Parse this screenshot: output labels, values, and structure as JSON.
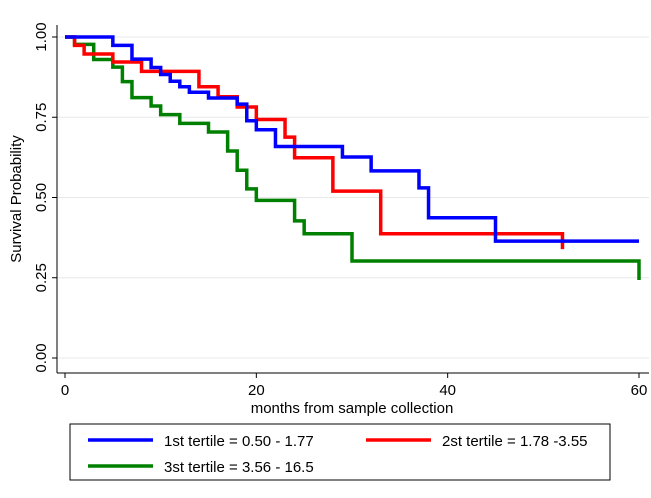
{
  "chart_data": {
    "type": "line",
    "step": true,
    "xlabel": "months from sample collection",
    "ylabel": "Survival Probability",
    "xlim": [
      0,
      60
    ],
    "ylim": [
      0,
      1
    ],
    "xticks": [
      0,
      20,
      40,
      60
    ],
    "yticks": [
      0,
      0.25,
      0.5,
      0.75,
      1
    ],
    "xtick_labels": [
      "0",
      "20",
      "40",
      "60"
    ],
    "ytick_labels": [
      "0.00",
      "0.25",
      "0.50",
      "0.75",
      "1.00"
    ],
    "grid": "horizontal",
    "legend_position": "bottom",
    "series": [
      {
        "name": "1st tertile = 0.50 - 1.77",
        "color": "#0000ff",
        "x": [
          0,
          5,
          7,
          9,
          10,
          11,
          12,
          13,
          15,
          18,
          19,
          20,
          22,
          29,
          32,
          37,
          38,
          45,
          60
        ],
        "y": [
          1.0,
          0.974,
          0.931,
          0.905,
          0.883,
          0.862,
          0.845,
          0.828,
          0.81,
          0.791,
          0.739,
          0.711,
          0.659,
          0.626,
          0.583,
          0.53,
          0.437,
          0.364,
          0.364
        ]
      },
      {
        "name": "2st tertile = 1.78 -3.55",
        "color": "#ff0000",
        "x": [
          0,
          1,
          2,
          5,
          8,
          14,
          16,
          18,
          20,
          23,
          24,
          28,
          33,
          52
        ],
        "y": [
          1.0,
          0.974,
          0.947,
          0.922,
          0.893,
          0.845,
          0.814,
          0.782,
          0.743,
          0.688,
          0.624,
          0.52,
          0.387,
          0.339
        ]
      },
      {
        "name": "3st tertile = 3.56 - 16.5",
        "color": "#008000",
        "x": [
          0,
          1,
          3,
          5,
          6,
          7,
          9,
          10,
          12,
          15,
          17,
          18,
          19,
          20,
          24,
          25,
          30,
          60
        ],
        "y": [
          1.0,
          0.977,
          0.93,
          0.906,
          0.861,
          0.811,
          0.785,
          0.758,
          0.731,
          0.704,
          0.645,
          0.585,
          0.527,
          0.491,
          0.427,
          0.387,
          0.302,
          0.243
        ]
      }
    ]
  }
}
